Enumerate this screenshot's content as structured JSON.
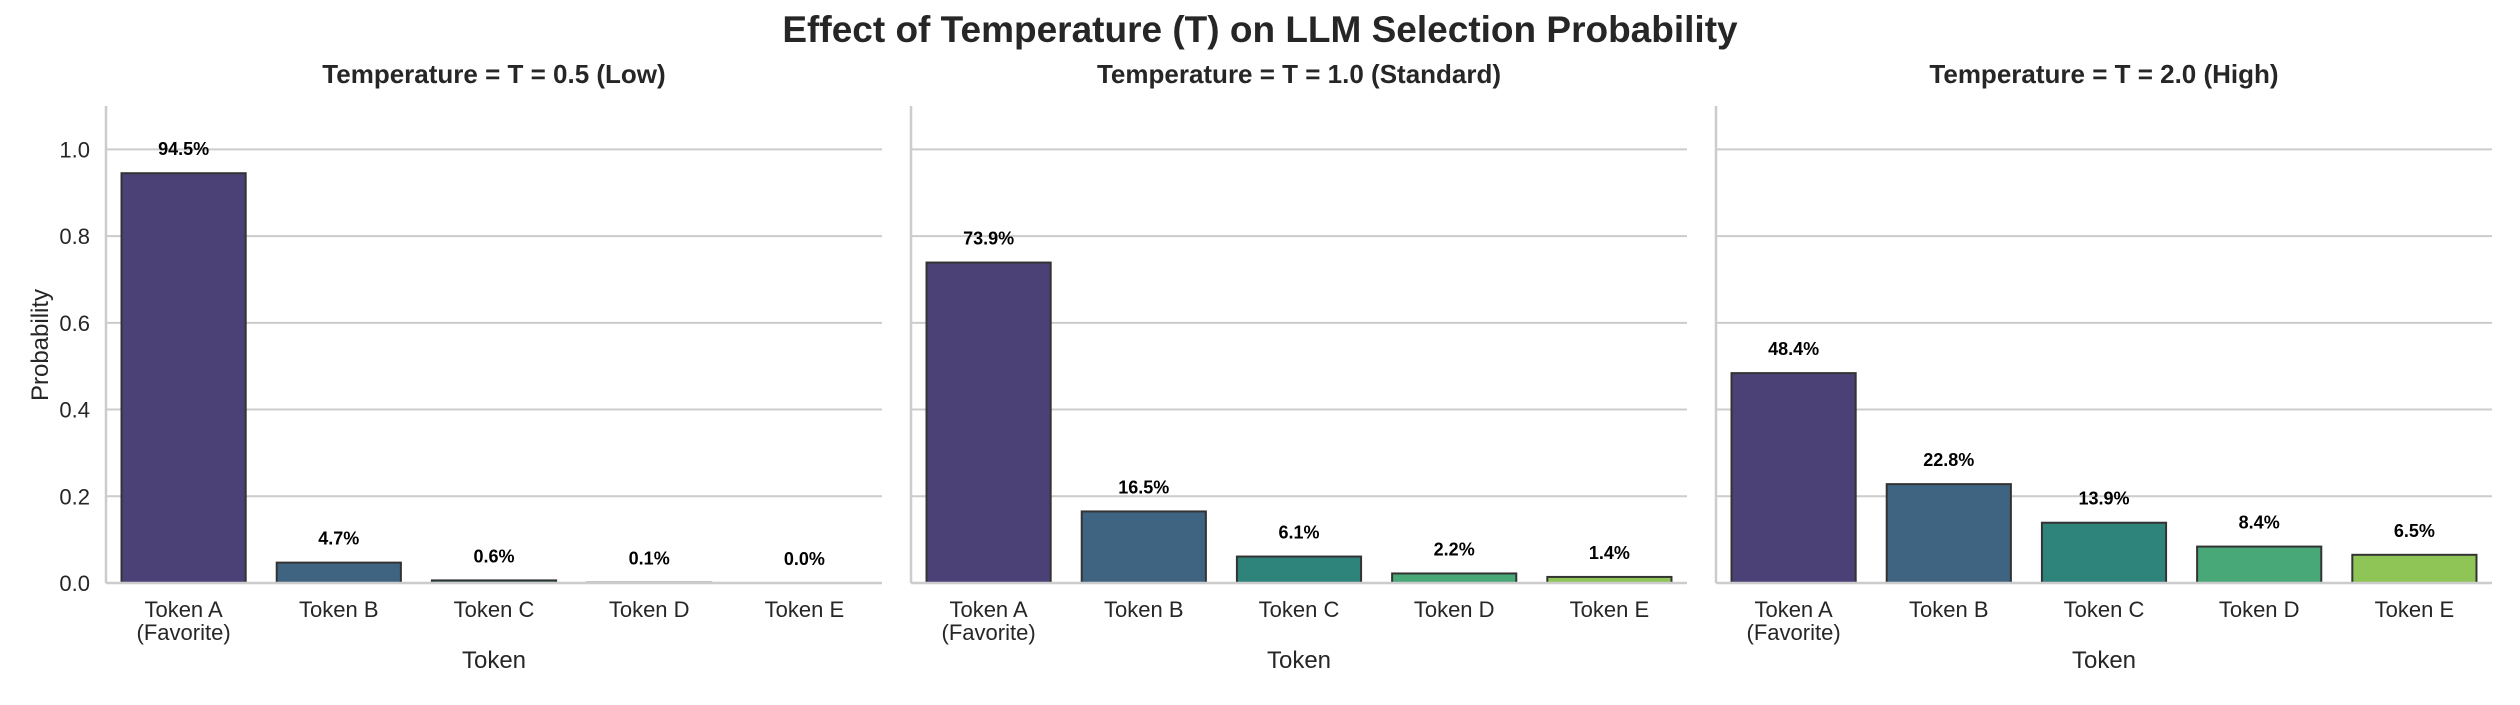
{
  "chart_data": {
    "type": "bar",
    "title": "Effect of Temperature (T) on LLM Selection Probability",
    "ylabel": "Probability",
    "xlabel": "Token",
    "ylim": [
      0,
      1.1
    ],
    "yticks": [
      "0.0",
      "0.2",
      "0.4",
      "0.6",
      "0.8",
      "1.0"
    ],
    "grid": true,
    "categories": [
      [
        "Token A",
        "(Favorite)"
      ],
      [
        "Token B"
      ],
      [
        "Token C"
      ],
      [
        "Token D"
      ],
      [
        "Token E"
      ]
    ],
    "colors": [
      "#4b4177",
      "#3e6482",
      "#2e837b",
      "#48a878",
      "#8fc457"
    ],
    "panels": [
      {
        "title": "Temperature = T = 0.5 (Low)",
        "values": [
          0.945,
          0.047,
          0.006,
          0.001,
          0.0
        ],
        "labels": [
          "94.5%",
          "4.7%",
          "0.6%",
          "0.1%",
          "0.0%"
        ]
      },
      {
        "title": "Temperature = T = 1.0 (Standard)",
        "values": [
          0.739,
          0.165,
          0.061,
          0.022,
          0.014
        ],
        "labels": [
          "73.9%",
          "16.5%",
          "6.1%",
          "2.2%",
          "1.4%"
        ]
      },
      {
        "title": "Temperature = T = 2.0 (High)",
        "values": [
          0.484,
          0.228,
          0.139,
          0.084,
          0.065
        ],
        "labels": [
          "48.4%",
          "22.8%",
          "13.9%",
          "8.4%",
          "6.5%"
        ]
      }
    ]
  }
}
